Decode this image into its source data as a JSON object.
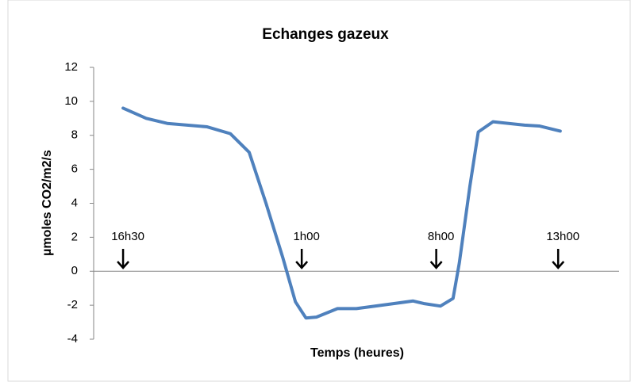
{
  "chart_data": {
    "type": "line",
    "title": "Echanges gazeux",
    "x_label": "Temps (heures)",
    "y_label": "µmoles CO2/m2/s",
    "x": [
      1.4,
      2.5,
      3.5,
      5.4,
      6.5,
      7.4,
      8.2,
      9.0,
      9.6,
      10.1,
      10.6,
      11.6,
      12.5,
      13.7,
      15.2,
      15.7,
      16.5,
      17.1,
      17.4,
      17.9,
      18.3,
      19.0,
      20.5,
      21.2,
      22.2
    ],
    "series": [
      {
        "color": "#4f81bd",
        "values": [
          9.6,
          9.0,
          8.7,
          8.5,
          8.1,
          7.0,
          4.0,
          0.8,
          -1.8,
          -2.75,
          -2.7,
          -2.2,
          -2.2,
          -2.0,
          -1.75,
          -1.9,
          -2.05,
          -1.6,
          0.5,
          5.0,
          8.2,
          8.8,
          8.6,
          8.55,
          8.25
        ]
      }
    ],
    "xlim": [
      0,
      25
    ],
    "ylim": [
      -4,
      12
    ],
    "yticks": [
      -4,
      -2,
      0,
      2,
      4,
      6,
      8,
      10,
      12
    ],
    "annotations": [
      {
        "text": "16h30",
        "x": 1.4
      },
      {
        "text": "1h00",
        "x": 9.9
      },
      {
        "text": "8h00",
        "x": 16.3
      },
      {
        "text": "13h00",
        "x": 22.1
      }
    ]
  }
}
